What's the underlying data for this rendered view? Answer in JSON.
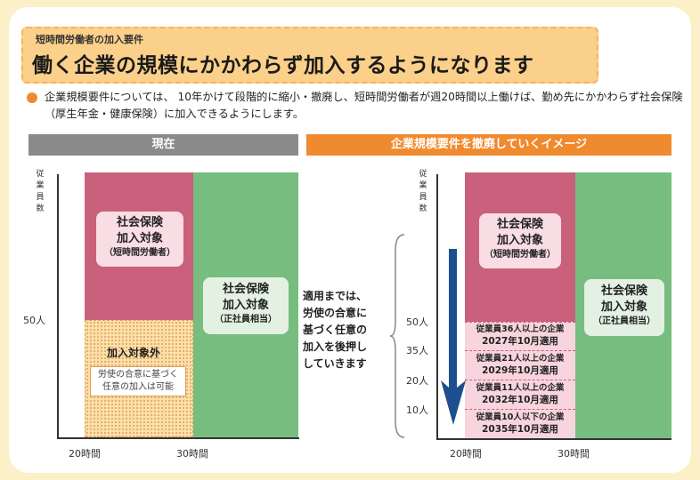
{
  "subtitle": "短時間労働者の加入要件",
  "headline": "働く企業の規模にかかわらず加入するようになります",
  "description": "企業規模要件については、 10年かけて段階的に縮小・撤廃し、短時間労働者が週20時間以上働けば、勤め先にかかわらず社会保険（厚生年金・健康保険）に加入できるようにします。",
  "left_panel": {
    "header": "現在",
    "y_title": [
      "従",
      "業",
      "員",
      "数"
    ],
    "y_tick": "50人",
    "x_ticks": [
      "20時間",
      "30時間"
    ],
    "pink_label": {
      "line1": "社会保険",
      "line2": "加入対象",
      "sub": "（短時間労働者）"
    },
    "green_label": {
      "line1": "社会保険",
      "line2": "加入対象",
      "sub": "（正社員相当）"
    },
    "out_label": "加入対象外",
    "out_note": [
      "労使の合意に基づく",
      "任意の加入は可能"
    ]
  },
  "middle_text": [
    "適用までは、",
    "労使の合意に",
    "基づく任意の",
    "加入を後押し",
    "していきます"
  ],
  "right_panel": {
    "header": "企業規模要件を撤廃していくイメージ",
    "y_title": [
      "従",
      "業",
      "員",
      "数"
    ],
    "y_ticks": [
      "50人",
      "35人",
      "20人",
      "10人"
    ],
    "x_ticks": [
      "20時間",
      "30時間"
    ],
    "pink_label": {
      "line1": "社会保険",
      "line2": "加入対象",
      "sub": "（短時間労働者）"
    },
    "green_label": {
      "line1": "社会保険",
      "line2": "加入対象",
      "sub": "（正社員相当）"
    },
    "bands": [
      {
        "line1": "従業員36人以上の企業",
        "line2": "2027年10月適用"
      },
      {
        "line1": "従業員21人以上の企業",
        "line2": "2029年10月適用"
      },
      {
        "line1": "従業員11人以上の企業",
        "line2": "2032年10月適用"
      },
      {
        "line1": "従業員10人以下の企業",
        "line2": "2035年10月適用"
      }
    ]
  },
  "colors": {
    "background": "#fcf0c8",
    "title_box": "#fbd08a",
    "accent_orange": "#f08a2e",
    "header_gray": "#8a8a8a",
    "pink_region": "#c9617c",
    "green_region": "#77bd7f",
    "light_pink_band": "#f7d4de",
    "arrow_blue": "#1d4f8f"
  },
  "icons": {
    "bullet": "orange-dot",
    "arrow": "down-arrow"
  }
}
